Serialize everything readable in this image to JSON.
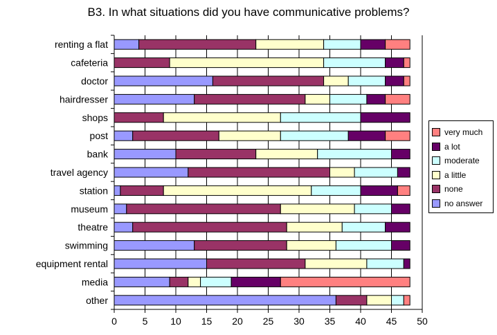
{
  "chart_data": {
    "type": "bar",
    "orientation": "horizontal",
    "stacked": true,
    "title": "B3. In what situations did you have communicative problems?",
    "xlim": [
      0,
      50
    ],
    "x_ticks": [
      "0",
      "5",
      "10",
      "15",
      "20",
      "25",
      "30",
      "35",
      "40",
      "45",
      "50"
    ],
    "grid": true,
    "legend_position": "right",
    "categories": [
      "renting a flat",
      "cafeteria",
      "doctor",
      "hairdresser",
      "shops",
      "post",
      "bank",
      "travel agency",
      "station",
      "museum",
      "theatre",
      "swimming",
      "equipment rental",
      "media",
      "other"
    ],
    "series": [
      {
        "name": "no answer",
        "color": "#9999ff",
        "values": [
          4,
          0,
          16,
          13,
          0,
          3,
          10,
          12,
          1,
          2,
          3,
          13,
          15,
          9,
          36
        ]
      },
      {
        "name": "none",
        "color": "#993366",
        "values": [
          19,
          9,
          18,
          18,
          8,
          14,
          13,
          23,
          7,
          25,
          25,
          15,
          16,
          3,
          5
        ]
      },
      {
        "name": "a little",
        "color": "#ffffcc",
        "values": [
          11,
          25,
          4,
          4,
          19,
          10,
          10,
          4,
          24,
          12,
          9,
          8,
          10,
          2,
          4
        ]
      },
      {
        "name": "moderate",
        "color": "#ccffff",
        "values": [
          6,
          10,
          6,
          6,
          13,
          11,
          12,
          7,
          8,
          6,
          7,
          9,
          6,
          5,
          2
        ]
      },
      {
        "name": "a lot",
        "color": "#660066",
        "values": [
          4,
          3,
          3,
          3,
          8,
          6,
          3,
          2,
          6,
          3,
          4,
          3,
          1,
          8,
          0
        ]
      },
      {
        "name": "very much",
        "color": "#ff8080",
        "values": [
          4,
          1,
          1,
          4,
          0,
          4,
          0,
          0,
          2,
          0,
          0,
          0,
          0,
          21,
          1
        ]
      }
    ],
    "legend_order": [
      "very much",
      "a lot",
      "moderate",
      "a little",
      "none",
      "no answer"
    ]
  }
}
